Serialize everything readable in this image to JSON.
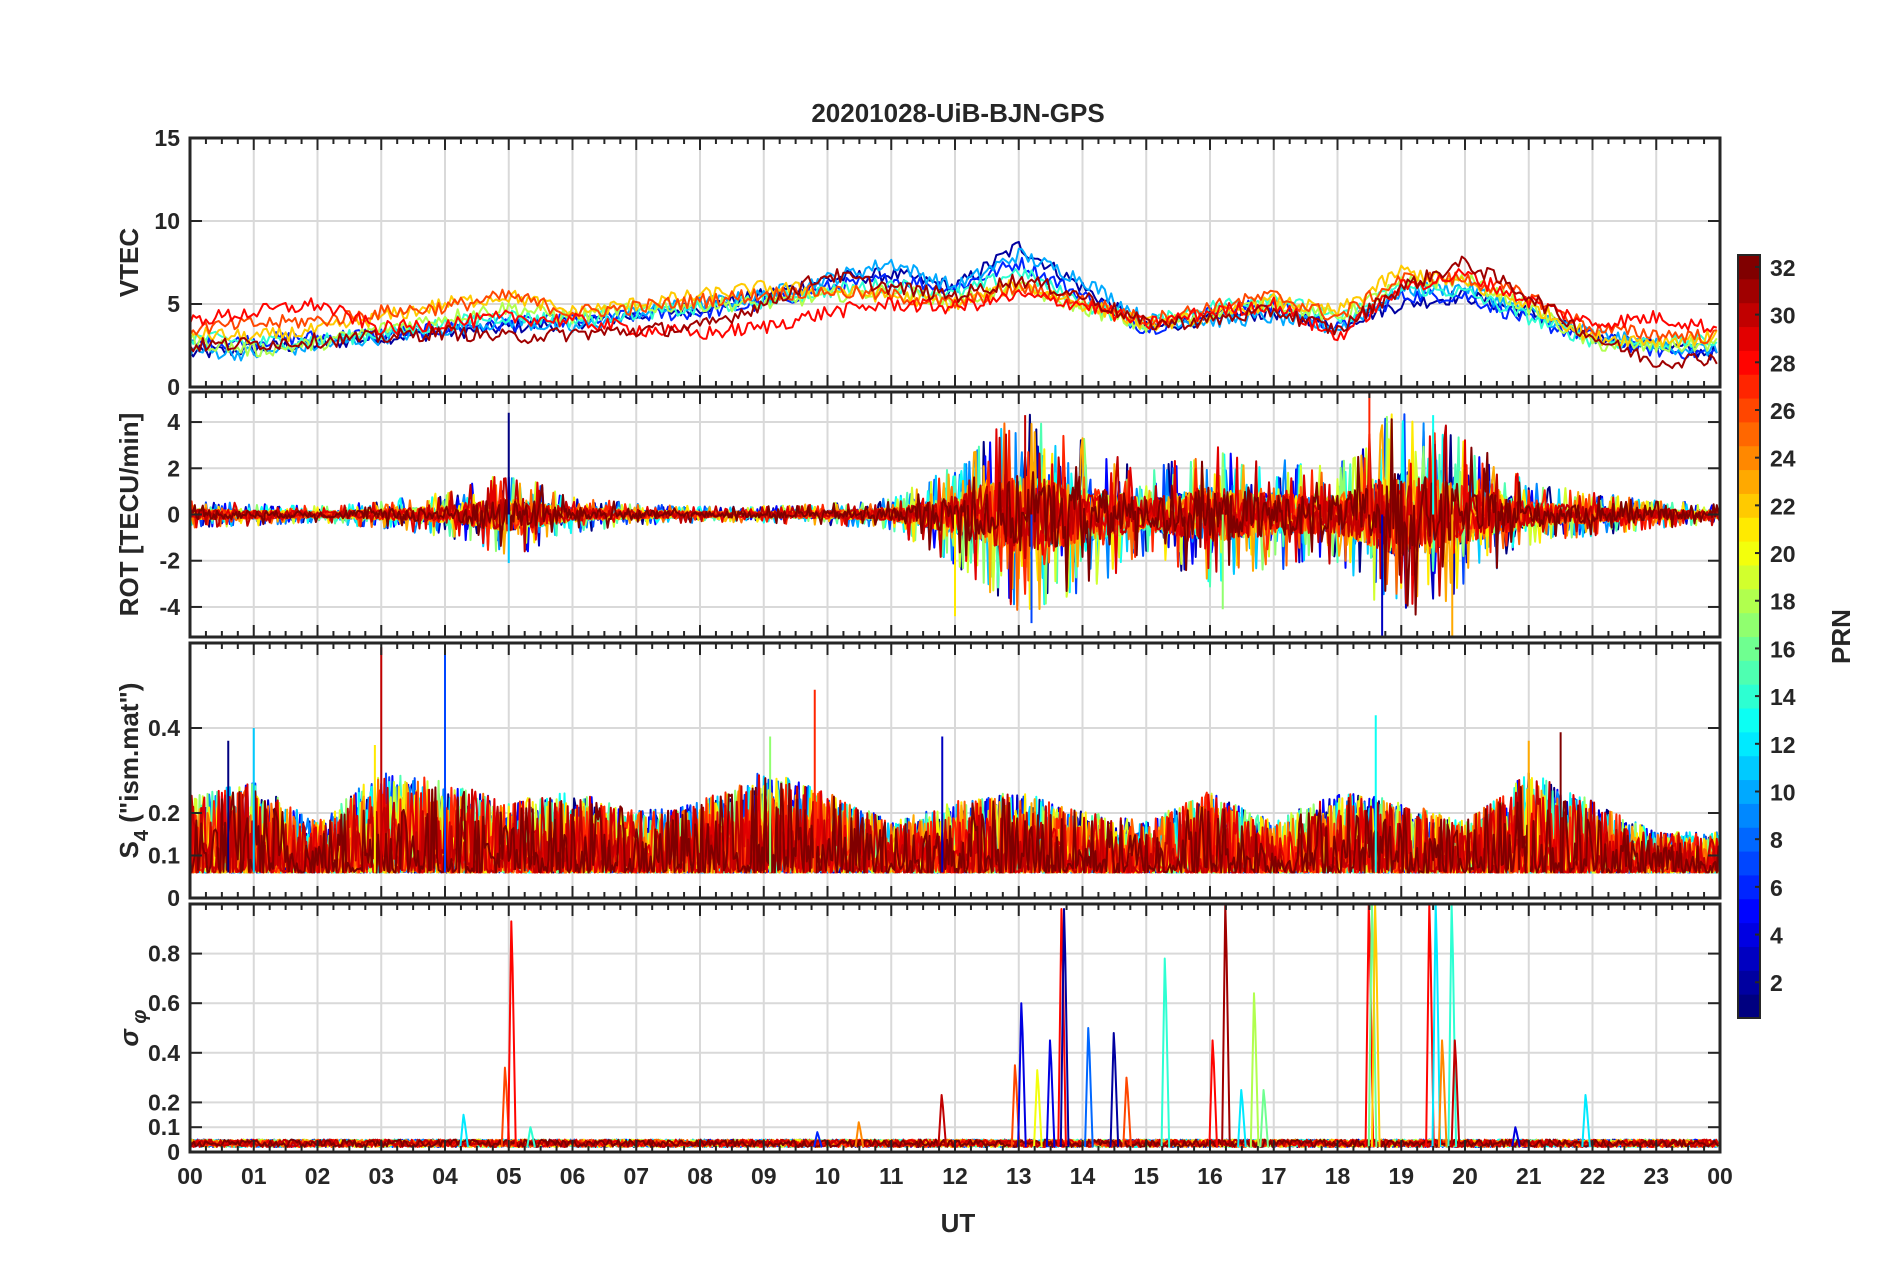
{
  "title": "20201028-UiB-BJN-GPS",
  "xlabel": "UT",
  "x_tick_labels": [
    "00",
    "01",
    "02",
    "03",
    "04",
    "05",
    "06",
    "07",
    "08",
    "09",
    "10",
    "11",
    "12",
    "13",
    "14",
    "15",
    "16",
    "17",
    "18",
    "19",
    "20",
    "21",
    "22",
    "23",
    "00"
  ],
  "colorbar": {
    "label": "PRN",
    "colormap": "jet",
    "range": [
      1,
      32
    ],
    "tick_labels": [
      "2",
      "4",
      "6",
      "8",
      "10",
      "12",
      "14",
      "16",
      "18",
      "20",
      "22",
      "24",
      "26",
      "28",
      "30",
      "32"
    ],
    "tick_values": [
      2,
      4,
      6,
      8,
      10,
      12,
      14,
      16,
      18,
      20,
      22,
      24,
      26,
      28,
      30,
      32
    ]
  },
  "chart_data": [
    {
      "type": "line",
      "panel": "VTEC",
      "ylabel": "VTEC",
      "xlim": [
        0,
        24
      ],
      "ylim": [
        0,
        15
      ],
      "y_ticks": [
        0,
        5,
        10,
        15
      ],
      "y_tick_labels": [
        "0",
        "5",
        "10",
        "15"
      ],
      "grid": true,
      "x": [
        0,
        1,
        2,
        3,
        4,
        5,
        6,
        7,
        8,
        9,
        10,
        11,
        12,
        13,
        14,
        15,
        16,
        17,
        18,
        19,
        20,
        21,
        22,
        23,
        24
      ],
      "series": [
        {
          "prn": 2,
          "values": [
            2.0,
            2.3,
            2.6,
            3.0,
            3.3,
            3.6,
            3.9,
            4.3,
            4.8,
            5.5,
            6.5,
            6.8,
            6.0,
            8.5,
            6.0,
            3.5,
            4.2,
            4.5,
            3.8,
            5.0,
            5.5,
            4.5,
            3.0,
            2.5,
            2.0
          ]
        },
        {
          "prn": 6,
          "values": [
            2.5,
            2.8,
            3.0,
            3.2,
            3.5,
            3.8,
            4.0,
            4.3,
            4.5,
            5.0,
            6.0,
            6.5,
            6.0,
            7.5,
            5.5,
            3.5,
            4.5,
            5.0,
            3.5,
            5.5,
            5.5,
            4.0,
            3.0,
            2.2,
            2.0
          ]
        },
        {
          "prn": 10,
          "values": [
            2.2,
            2.0,
            2.5,
            3.0,
            3.5,
            4.0,
            3.5,
            4.5,
            5.0,
            5.5,
            6.5,
            7.5,
            6.0,
            8.0,
            6.5,
            4.0,
            4.0,
            4.2,
            3.5,
            5.8,
            6.0,
            4.5,
            3.2,
            2.5,
            2.2
          ]
        },
        {
          "prn": 14,
          "values": [
            3.0,
            2.7,
            2.8,
            3.2,
            3.8,
            4.3,
            4.0,
            4.5,
            4.7,
            5.2,
            5.8,
            6.2,
            5.5,
            7.0,
            5.0,
            3.8,
            4.8,
            5.5,
            4.0,
            6.0,
            5.7,
            4.2,
            2.8,
            2.6,
            2.8
          ]
        },
        {
          "prn": 18,
          "values": [
            2.8,
            2.2,
            2.6,
            3.5,
            4.2,
            4.8,
            4.2,
            4.8,
            5.0,
            5.0,
            5.5,
            5.8,
            5.2,
            6.0,
            4.8,
            3.6,
            4.5,
            5.0,
            4.2,
            6.2,
            6.5,
            4.8,
            2.6,
            2.4,
            2.6
          ]
        },
        {
          "prn": 22,
          "values": [
            3.2,
            3.0,
            3.4,
            4.2,
            5.0,
            5.5,
            4.5,
            5.0,
            5.5,
            6.0,
            5.8,
            5.5,
            5.0,
            6.2,
            5.0,
            3.8,
            4.2,
            5.2,
            4.5,
            7.0,
            6.2,
            5.0,
            3.0,
            2.8,
            3.0
          ]
        },
        {
          "prn": 26,
          "values": [
            3.5,
            3.8,
            4.0,
            4.5,
            4.8,
            5.5,
            4.5,
            4.8,
            5.2,
            5.6,
            5.8,
            5.5,
            5.0,
            6.0,
            5.2,
            4.0,
            4.8,
            5.5,
            4.2,
            6.5,
            6.5,
            5.5,
            3.5,
            3.2,
            3.0
          ]
        },
        {
          "prn": 28,
          "values": [
            4.0,
            4.5,
            5.0,
            3.5,
            3.8,
            4.2,
            4.0,
            3.5,
            3.2,
            3.6,
            4.5,
            5.0,
            4.8,
            5.5,
            5.0,
            3.8,
            4.5,
            5.0,
            3.0,
            6.0,
            6.8,
            5.2,
            3.8,
            4.2,
            3.5
          ]
        },
        {
          "prn": 31,
          "values": [
            2.5,
            2.6,
            2.8,
            3.0,
            3.3,
            3.0,
            3.2,
            3.4,
            3.6,
            5.0,
            6.8,
            6.0,
            5.5,
            6.5,
            5.5,
            3.8,
            4.0,
            4.6,
            3.4,
            6.0,
            7.5,
            5.5,
            3.0,
            1.5,
            1.8
          ]
        }
      ]
    },
    {
      "type": "line",
      "panel": "ROT",
      "ylabel": "ROT [TECU/min]",
      "xlim": [
        0,
        24
      ],
      "ylim": [
        -5.3,
        5.3
      ],
      "y_ticks": [
        -4,
        -2,
        0,
        2,
        4
      ],
      "y_tick_labels": [
        "-4",
        "-2",
        "0",
        "2",
        "4"
      ],
      "grid": true,
      "activity": {
        "x": [
          0,
          1,
          2,
          3,
          4,
          5,
          6,
          7,
          8,
          9,
          10,
          11,
          12,
          13,
          14,
          15,
          16,
          17,
          18,
          19,
          20,
          21,
          22,
          23,
          24
        ],
        "amplitude": [
          0.5,
          0.4,
          0.3,
          0.5,
          0.8,
          1.6,
          0.7,
          0.4,
          0.3,
          0.3,
          0.4,
          0.6,
          1.8,
          3.8,
          2.8,
          1.5,
          2.6,
          2.0,
          1.8,
          4.2,
          2.8,
          1.2,
          0.8,
          0.5,
          0.4
        ]
      },
      "peaks": [
        {
          "x": 5.0,
          "y": 4.4
        },
        {
          "x": 5.0,
          "y": -2.1
        },
        {
          "x": 12.0,
          "y": -4.4
        },
        {
          "x": 13.1,
          "y": 4.3
        },
        {
          "x": 13.2,
          "y": -4.7
        },
        {
          "x": 16.2,
          "y": -4.1
        },
        {
          "x": 18.5,
          "y": 5.3
        },
        {
          "x": 18.7,
          "y": -5.3
        },
        {
          "x": 19.5,
          "y": 4.3
        },
        {
          "x": 19.8,
          "y": -5.3
        }
      ]
    },
    {
      "type": "line",
      "panel": "S4",
      "ylabel": "S4 (\"ism.mat\")",
      "xlim": [
        0,
        24
      ],
      "ylim": [
        0,
        0.6
      ],
      "y_ticks": [
        0,
        0.1,
        0.2,
        0.4
      ],
      "y_tick_labels": [
        "0",
        "0.1",
        "0.2",
        "0.4"
      ],
      "grid": true,
      "baseline": 0.06,
      "activity": {
        "x": [
          0,
          1,
          2,
          3,
          4,
          5,
          6,
          7,
          8,
          9,
          10,
          11,
          12,
          13,
          14,
          15,
          16,
          17,
          18,
          19,
          20,
          21,
          22,
          23,
          24
        ],
        "amplitude": [
          0.15,
          0.18,
          0.1,
          0.2,
          0.18,
          0.14,
          0.16,
          0.12,
          0.14,
          0.2,
          0.16,
          0.1,
          0.14,
          0.16,
          0.12,
          0.1,
          0.16,
          0.1,
          0.16,
          0.14,
          0.1,
          0.2,
          0.14,
          0.08,
          0.08
        ]
      },
      "peaks": [
        {
          "x": 0.6,
          "y": 0.37
        },
        {
          "x": 1.0,
          "y": 0.4
        },
        {
          "x": 2.9,
          "y": 0.36
        },
        {
          "x": 3.0,
          "y": 0.59
        },
        {
          "x": 4.0,
          "y": 0.58
        },
        {
          "x": 9.1,
          "y": 0.38
        },
        {
          "x": 9.8,
          "y": 0.49
        },
        {
          "x": 11.8,
          "y": 0.38
        },
        {
          "x": 18.6,
          "y": 0.43
        },
        {
          "x": 21.0,
          "y": 0.37
        },
        {
          "x": 21.5,
          "y": 0.39
        }
      ]
    },
    {
      "type": "line",
      "panel": "sigma_phi",
      "ylabel": "σφ",
      "xlim": [
        0,
        24
      ],
      "ylim": [
        0,
        1.0
      ],
      "y_ticks": [
        0,
        0.1,
        0.2,
        0.4,
        0.6,
        0.8
      ],
      "y_tick_labels": [
        "0",
        "0.1",
        "0.2",
        "0.4",
        "0.6",
        "0.8"
      ],
      "grid": true,
      "baseline": 0.02,
      "spikes": [
        {
          "x": 4.3,
          "y": 0.15,
          "prn": 12
        },
        {
          "x": 4.95,
          "y": 0.34,
          "prn": 26
        },
        {
          "x": 5.05,
          "y": 0.93,
          "prn": 28
        },
        {
          "x": 5.35,
          "y": 0.1,
          "prn": 14
        },
        {
          "x": 11.8,
          "y": 0.23,
          "prn": 30
        },
        {
          "x": 12.95,
          "y": 0.35,
          "prn": 26
        },
        {
          "x": 13.05,
          "y": 0.6,
          "prn": 4
        },
        {
          "x": 13.3,
          "y": 0.33,
          "prn": 20
        },
        {
          "x": 13.5,
          "y": 0.45,
          "prn": 4
        },
        {
          "x": 13.68,
          "y": 0.98,
          "prn": 28
        },
        {
          "x": 13.72,
          "y": 0.98,
          "prn": 2
        },
        {
          "x": 14.1,
          "y": 0.5,
          "prn": 8
        },
        {
          "x": 14.5,
          "y": 0.48,
          "prn": 2
        },
        {
          "x": 14.7,
          "y": 0.3,
          "prn": 26
        },
        {
          "x": 15.3,
          "y": 0.78,
          "prn": 14
        },
        {
          "x": 16.05,
          "y": 0.45,
          "prn": 28
        },
        {
          "x": 16.25,
          "y": 1.0,
          "prn": 31
        },
        {
          "x": 16.5,
          "y": 0.25,
          "prn": 12
        },
        {
          "x": 16.7,
          "y": 0.64,
          "prn": 18
        },
        {
          "x": 16.85,
          "y": 0.25,
          "prn": 16
        },
        {
          "x": 18.5,
          "y": 1.0,
          "prn": 28
        },
        {
          "x": 18.55,
          "y": 1.0,
          "prn": 16
        },
        {
          "x": 18.6,
          "y": 1.0,
          "prn": 22
        },
        {
          "x": 19.45,
          "y": 1.0,
          "prn": 28
        },
        {
          "x": 19.55,
          "y": 1.0,
          "prn": 12
        },
        {
          "x": 19.65,
          "y": 0.45,
          "prn": 24
        },
        {
          "x": 19.8,
          "y": 1.0,
          "prn": 14
        },
        {
          "x": 19.85,
          "y": 0.45,
          "prn": 30
        },
        {
          "x": 21.9,
          "y": 0.23,
          "prn": 12
        },
        {
          "x": 9.85,
          "y": 0.08,
          "prn": 6
        },
        {
          "x": 10.5,
          "y": 0.12,
          "prn": 24
        },
        {
          "x": 20.8,
          "y": 0.1,
          "prn": 4
        }
      ]
    }
  ]
}
